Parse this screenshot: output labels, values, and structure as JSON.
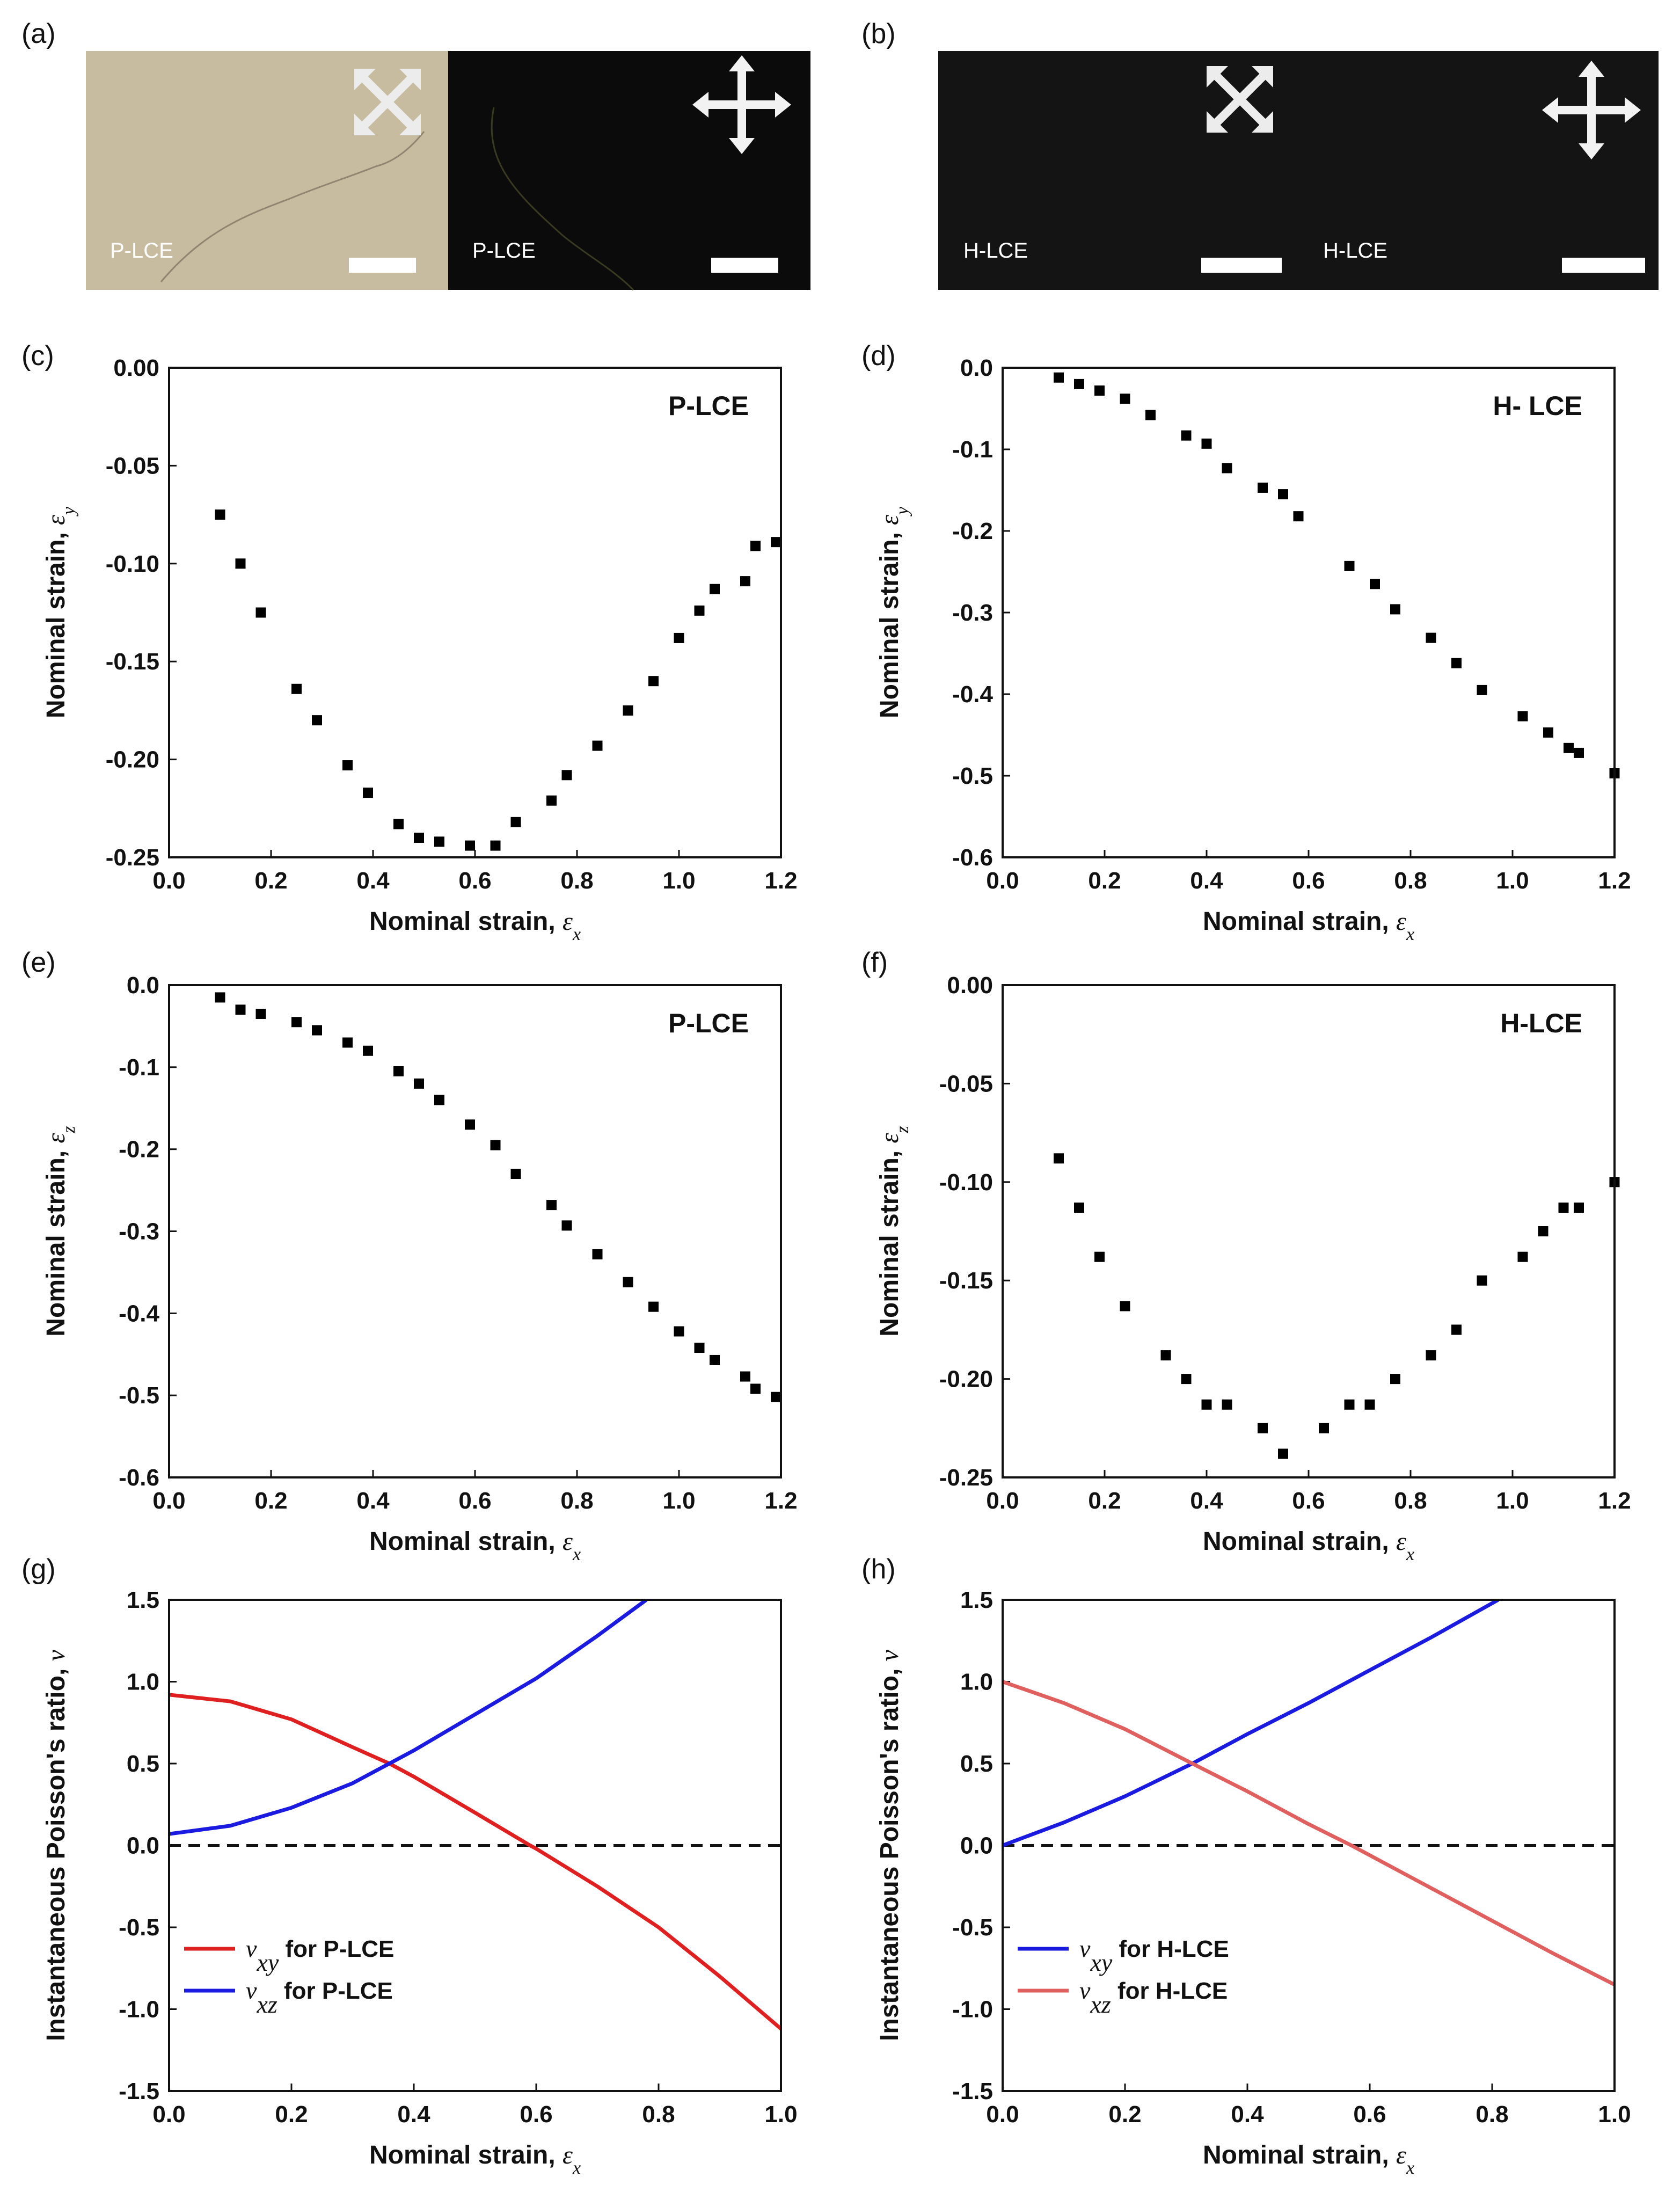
{
  "figure": {
    "panel_labels": [
      "(a)",
      "(b)",
      "(c)",
      "(d)",
      "(e)",
      "(f)",
      "(g)",
      "(h)"
    ]
  },
  "micrographs": {
    "a": {
      "left_label": "P-LCE",
      "right_label": "P-LCE",
      "left_bg": "#c8bca0",
      "right_bg": "#0b0b0b",
      "left_icon": "crossed-polarizer-diagonal-icon",
      "right_icon": "crossed-polarizer-orthogonal-icon"
    },
    "b": {
      "left_label": "H-LCE",
      "right_label": "H-LCE",
      "left_bg": "#141414",
      "right_bg": "#141414",
      "left_icon": "crossed-polarizer-diagonal-icon",
      "right_icon": "crossed-polarizer-orthogonal-icon"
    }
  },
  "chart_data": [
    {
      "id": "c",
      "type": "scatter",
      "tag": "P-LCE",
      "xlabel": "Nominal strain, ",
      "xsym": "ε",
      "xsub": "x",
      "ylabel": "Nominal strain, ",
      "ysym": "ε",
      "ysub": "y",
      "xlim": [
        0,
        1.2
      ],
      "ylim": [
        -0.25,
        0
      ],
      "xticks": [
        0,
        0.2,
        0.4,
        0.6,
        0.8,
        1.0,
        1.2
      ],
      "xticklabels": [
        "0.0",
        "0.2",
        "0.4",
        "0.6",
        "0.8",
        "1.0",
        "1.2"
      ],
      "yticks": [
        0,
        -0.05,
        -0.1,
        -0.15,
        -0.2,
        -0.25
      ],
      "yticklabels": [
        "0.00",
        "-0.05",
        "-0.10",
        "-0.15",
        "-0.20",
        "-0.25"
      ],
      "x": [
        0.1,
        0.14,
        0.18,
        0.25,
        0.29,
        0.35,
        0.39,
        0.45,
        0.49,
        0.53,
        0.59,
        0.64,
        0.68,
        0.75,
        0.78,
        0.84,
        0.9,
        0.95,
        1.0,
        1.04,
        1.07,
        1.13,
        1.15,
        1.19
      ],
      "y": [
        -0.075,
        -0.1,
        -0.125,
        -0.164,
        -0.18,
        -0.203,
        -0.217,
        -0.233,
        -0.24,
        -0.242,
        -0.244,
        -0.244,
        -0.232,
        -0.221,
        -0.208,
        -0.193,
        -0.175,
        -0.16,
        -0.138,
        -0.124,
        -0.113,
        -0.109,
        -0.091,
        -0.089
      ]
    },
    {
      "id": "d",
      "type": "scatter",
      "tag": "H- LCE",
      "xlabel": "Nominal strain, ",
      "xsym": "ε",
      "xsub": "x",
      "ylabel": "Nominal strain, ",
      "ysym": "ε",
      "ysub": "y",
      "xlim": [
        0,
        1.2
      ],
      "ylim": [
        -0.6,
        0
      ],
      "xticks": [
        0,
        0.2,
        0.4,
        0.6,
        0.8,
        1.0,
        1.2
      ],
      "xticklabels": [
        "0.0",
        "0.2",
        "0.4",
        "0.6",
        "0.8",
        "1.0",
        "1.2"
      ],
      "yticks": [
        0,
        -0.1,
        -0.2,
        -0.3,
        -0.4,
        -0.5,
        -0.6
      ],
      "yticklabels": [
        "0.0",
        "-0.1",
        "-0.2",
        "-0.3",
        "-0.4",
        "-0.5",
        "-0.6"
      ],
      "x": [
        0.11,
        0.15,
        0.19,
        0.24,
        0.29,
        0.36,
        0.4,
        0.44,
        0.51,
        0.55,
        0.58,
        0.68,
        0.73,
        0.77,
        0.84,
        0.89,
        0.94,
        1.02,
        1.07,
        1.11,
        1.13,
        1.2
      ],
      "y": [
        -0.012,
        -0.02,
        -0.028,
        -0.038,
        -0.058,
        -0.083,
        -0.093,
        -0.123,
        -0.147,
        -0.155,
        -0.182,
        -0.243,
        -0.265,
        -0.296,
        -0.331,
        -0.362,
        -0.395,
        -0.427,
        -0.447,
        -0.466,
        -0.472,
        -0.497
      ]
    },
    {
      "id": "e",
      "type": "scatter",
      "tag": "P-LCE",
      "xlabel": "Nominal strain, ",
      "xsym": "ε",
      "xsub": "x",
      "ylabel": "Nominal strain, ",
      "ysym": "ε",
      "ysub": "z",
      "xlim": [
        0,
        1.2
      ],
      "ylim": [
        -0.6,
        0
      ],
      "xticks": [
        0,
        0.2,
        0.4,
        0.6,
        0.8,
        1.0,
        1.2
      ],
      "xticklabels": [
        "0.0",
        "0.2",
        "0.4",
        "0.6",
        "0.8",
        "1.0",
        "1.2"
      ],
      "yticks": [
        0,
        -0.1,
        -0.2,
        -0.3,
        -0.4,
        -0.5,
        -0.6
      ],
      "yticklabels": [
        "0.0",
        "-0.1",
        "-0.2",
        "-0.3",
        "-0.4",
        "-0.5",
        "-0.6"
      ],
      "x": [
        0.1,
        0.14,
        0.18,
        0.25,
        0.29,
        0.35,
        0.39,
        0.45,
        0.49,
        0.53,
        0.59,
        0.64,
        0.68,
        0.75,
        0.78,
        0.84,
        0.9,
        0.95,
        1.0,
        1.04,
        1.07,
        1.13,
        1.15,
        1.19
      ],
      "y": [
        -0.015,
        -0.03,
        -0.035,
        -0.045,
        -0.055,
        -0.07,
        -0.08,
        -0.105,
        -0.12,
        -0.14,
        -0.17,
        -0.195,
        -0.23,
        -0.268,
        -0.293,
        -0.328,
        -0.362,
        -0.392,
        -0.422,
        -0.442,
        -0.457,
        -0.477,
        -0.492,
        -0.502
      ]
    },
    {
      "id": "f",
      "type": "scatter",
      "tag": "H-LCE",
      "xlabel": "Nominal strain, ",
      "xsym": "ε",
      "xsub": "x",
      "ylabel": "Nominal strain, ",
      "ysym": "ε",
      "ysub": "z",
      "xlim": [
        0,
        1.2
      ],
      "ylim": [
        -0.25,
        0
      ],
      "xticks": [
        0,
        0.2,
        0.4,
        0.6,
        0.8,
        1.0,
        1.2
      ],
      "xticklabels": [
        "0.0",
        "0.2",
        "0.4",
        "0.6",
        "0.8",
        "1.0",
        "1.2"
      ],
      "yticks": [
        0,
        -0.05,
        -0.1,
        -0.15,
        -0.2,
        -0.25
      ],
      "yticklabels": [
        "0.00",
        "-0.05",
        "-0.10",
        "-0.15",
        "-0.20",
        "-0.25"
      ],
      "x": [
        0.11,
        0.15,
        0.19,
        0.24,
        0.32,
        0.36,
        0.4,
        0.44,
        0.51,
        0.55,
        0.63,
        0.68,
        0.72,
        0.77,
        0.84,
        0.89,
        0.94,
        1.02,
        1.06,
        1.1,
        1.13,
        1.2
      ],
      "y": [
        -0.088,
        -0.113,
        -0.138,
        -0.163,
        -0.188,
        -0.2,
        -0.213,
        -0.213,
        -0.225,
        -0.238,
        -0.225,
        -0.213,
        -0.213,
        -0.2,
        -0.188,
        -0.175,
        -0.15,
        -0.138,
        -0.125,
        -0.113,
        -0.113,
        -0.1
      ]
    },
    {
      "id": "g",
      "type": "line",
      "xlabel": "Nominal strain, ",
      "xsym": "ε",
      "xsub": "x",
      "ylabel": "Instantaneous Poisson's ratio, ",
      "ysym": "ν",
      "ysub": "",
      "xlim": [
        0,
        1.0
      ],
      "ylim": [
        -1.5,
        1.5
      ],
      "xticks": [
        0,
        0.2,
        0.4,
        0.6,
        0.8,
        1.0
      ],
      "xticklabels": [
        "0.0",
        "0.2",
        "0.4",
        "0.6",
        "0.8",
        "1.0"
      ],
      "yticks": [
        1.5,
        1.0,
        0.5,
        0.0,
        -0.5,
        -1.0,
        -1.5
      ],
      "yticklabels": [
        "1.5",
        "1.0",
        "0.5",
        "0.0",
        "-0.5",
        "-1.0",
        "-1.5"
      ],
      "reference_line": {
        "y": 0,
        "style": "dashed",
        "color": "#111111"
      },
      "legend_position": "bottom-left",
      "series": [
        {
          "name": "for P-LCE",
          "sym": "ν",
          "sub": "xy",
          "color": "#e02020",
          "x": [
            0.0,
            0.1,
            0.2,
            0.3,
            0.36,
            0.4,
            0.5,
            0.59,
            0.6,
            0.7,
            0.8,
            0.9,
            1.0
          ],
          "y": [
            0.92,
            0.88,
            0.77,
            0.6,
            0.5,
            0.42,
            0.2,
            0.0,
            -0.02,
            -0.25,
            -0.5,
            -0.8,
            -1.12
          ]
        },
        {
          "name": "for P-LCE",
          "sym": "ν",
          "sub": "xz",
          "color": "#1a1ae0",
          "x": [
            0.0,
            0.1,
            0.2,
            0.3,
            0.36,
            0.4,
            0.5,
            0.6,
            0.7,
            0.78
          ],
          "y": [
            0.07,
            0.12,
            0.23,
            0.38,
            0.5,
            0.58,
            0.8,
            1.02,
            1.28,
            1.5
          ]
        }
      ]
    },
    {
      "id": "h",
      "type": "line",
      "xlabel": "Nominal strain, ",
      "xsym": "ε",
      "xsub": "x",
      "ylabel": "Instantaneous Poisson's ratio, ",
      "ysym": "ν",
      "ysub": "",
      "xlim": [
        0,
        1.0
      ],
      "ylim": [
        -1.5,
        1.5
      ],
      "xticks": [
        0,
        0.2,
        0.4,
        0.6,
        0.8,
        1.0
      ],
      "xticklabels": [
        "0.0",
        "0.2",
        "0.4",
        "0.6",
        "0.8",
        "1.0"
      ],
      "yticks": [
        1.5,
        1.0,
        0.5,
        0.0,
        -0.5,
        -1.0,
        -1.5
      ],
      "yticklabels": [
        "1.5",
        "1.0",
        "0.5",
        "0.0",
        "-0.5",
        "-1.0",
        "-1.5"
      ],
      "reference_line": {
        "y": 0,
        "style": "dashed",
        "color": "#111111"
      },
      "legend_position": "bottom-left",
      "series": [
        {
          "name": "for H-LCE",
          "sym": "ν",
          "sub": "xy",
          "color": "#1a1ae0",
          "x": [
            0.0,
            0.1,
            0.2,
            0.31,
            0.4,
            0.5,
            0.6,
            0.7,
            0.81
          ],
          "y": [
            0.0,
            0.14,
            0.3,
            0.5,
            0.68,
            0.87,
            1.07,
            1.27,
            1.5
          ]
        },
        {
          "name": "for H-LCE",
          "sym": "ν",
          "sub": "xz",
          "color": "#e06060",
          "x": [
            0.0,
            0.1,
            0.2,
            0.31,
            0.4,
            0.5,
            0.57,
            0.6,
            0.7,
            0.8,
            0.9,
            1.0
          ],
          "y": [
            1.0,
            0.87,
            0.71,
            0.5,
            0.33,
            0.13,
            0.0,
            -0.06,
            -0.26,
            -0.46,
            -0.66,
            -0.85
          ]
        }
      ]
    }
  ]
}
